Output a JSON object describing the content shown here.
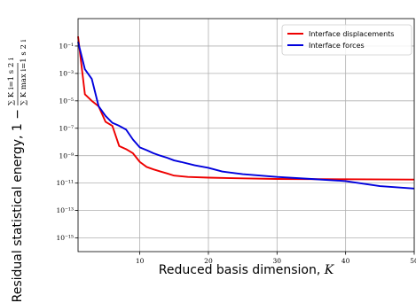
{
  "chart_data": {
    "type": "line",
    "xlabel": "Reduced basis dimension, K",
    "ylabel": "Residual statistical energy, 1 − Σ_{i=1}^{K} s_i² / Σ_{i=1}^{K_max} s_i²",
    "ylabel_main": "Residual statistical energy, 1 −",
    "ylabel_num": "∑ K i=1 s 2 i",
    "ylabel_den": "∑ K max i=1 s 2 i",
    "xlim": [
      1,
      50
    ],
    "ylim": [
      1e-16,
      10
    ],
    "yscale": "log",
    "grid": true,
    "legend_position": "top-right",
    "x_ticks": [
      10,
      20,
      30,
      40,
      50
    ],
    "x_tick_labels": [
      "10",
      "20",
      "30",
      "40",
      "50"
    ],
    "y_ticks": [
      1e-15,
      1e-13,
      1e-11,
      1e-09,
      1e-07,
      1e-05,
      0.001,
      0.1
    ],
    "y_tick_labels": [
      "10⁻¹⁵",
      "10⁻¹³",
      "10⁻¹¹",
      "10⁻⁹",
      "10⁻⁷",
      "10⁻⁵",
      "10⁻³",
      "10⁻¹"
    ],
    "series": [
      {
        "name": "Interface displacements",
        "color": "#ee0000",
        "x": [
          1,
          2,
          3,
          4,
          5,
          6,
          7,
          8,
          9,
          10,
          11,
          12,
          13,
          14,
          15,
          17,
          20,
          25,
          30,
          40,
          50
        ],
        "y": [
          0.5,
          3e-05,
          1e-05,
          4e-06,
          3e-07,
          1.5e-07,
          5e-09,
          3e-09,
          1.5e-09,
          3.5e-10,
          1.5e-10,
          1e-10,
          7e-11,
          5e-11,
          3.5e-11,
          2.8e-11,
          2.5e-11,
          2.2e-11,
          2e-11,
          1.9e-11,
          1.8e-11
        ]
      },
      {
        "name": "Interface forces",
        "color": "#0000dd",
        "x": [
          1,
          2,
          3,
          4,
          5,
          6,
          7,
          8,
          9,
          10,
          11,
          12,
          13,
          14,
          15,
          16,
          18,
          20,
          22,
          25,
          30,
          35,
          40,
          45,
          50
        ],
        "y": [
          0.2,
          0.002,
          0.0004,
          4e-06,
          8e-07,
          2.5e-07,
          1.5e-07,
          8e-08,
          1.5e-08,
          4e-09,
          2.5e-09,
          1.5e-09,
          1e-09,
          7e-10,
          4.5e-10,
          3.5e-10,
          2e-10,
          1.3e-10,
          7e-11,
          4.5e-11,
          2.8e-11,
          2e-11,
          1.4e-11,
          6e-12,
          4e-12
        ]
      }
    ]
  }
}
